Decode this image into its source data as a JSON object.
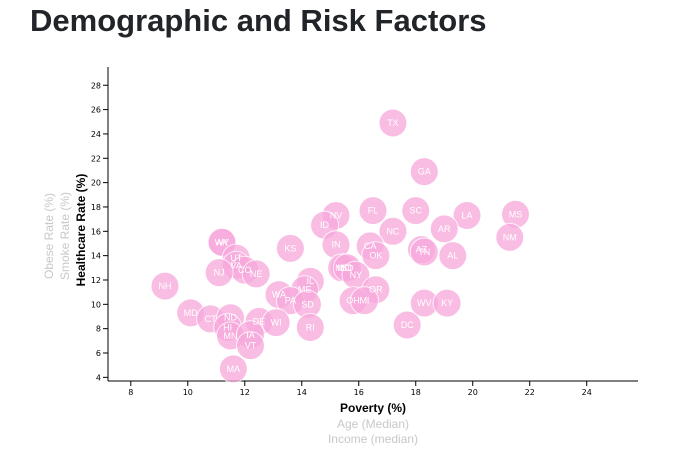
{
  "page": {
    "title": "Demographic and Risk Factors"
  },
  "colors": {
    "circle": "#f7a8dc",
    "state_text": "#ffffff",
    "active_label": "#000000",
    "inactive_label": "#c8c8c8"
  },
  "chart_data": {
    "type": "scatter",
    "xlabel": "Poverty (%)",
    "ylabel": "Healthcare Rate (%)",
    "x_axis_options": [
      {
        "label": "Poverty (%)",
        "active": true
      },
      {
        "label": "Age (Median)",
        "active": false
      },
      {
        "label": "Income (median)",
        "active": false
      }
    ],
    "y_axis_options": [
      {
        "label": "Healthcare Rate (%)",
        "active": true
      },
      {
        "label": "Smoke Rate (%)",
        "active": false
      },
      {
        "label": "Obese Rate (%)",
        "active": false
      }
    ],
    "xlim": [
      7.2,
      25.8
    ],
    "ylim": [
      3.7,
      29.5
    ],
    "x_ticks": [
      8,
      10,
      12,
      14,
      16,
      18,
      20,
      22,
      24
    ],
    "y_ticks": [
      4,
      6,
      8,
      10,
      12,
      14,
      16,
      18,
      20,
      22,
      24,
      26,
      28
    ],
    "grid": false,
    "points": [
      {
        "label": "TX",
        "x": 17.2,
        "y": 24.9
      },
      {
        "label": "GA",
        "x": 18.3,
        "y": 20.9
      },
      {
        "label": "LA",
        "x": 19.8,
        "y": 17.3
      },
      {
        "label": "MS",
        "x": 21.5,
        "y": 17.4
      },
      {
        "label": "SC",
        "x": 18.0,
        "y": 17.7
      },
      {
        "label": "FL",
        "x": 16.5,
        "y": 17.7
      },
      {
        "label": "NV",
        "x": 15.2,
        "y": 17.3
      },
      {
        "label": "ID",
        "x": 14.8,
        "y": 16.5
      },
      {
        "label": "NC",
        "x": 17.2,
        "y": 16.0
      },
      {
        "label": "AR",
        "x": 19.0,
        "y": 16.2
      },
      {
        "label": "NM",
        "x": 21.3,
        "y": 15.5
      },
      {
        "label": "AK",
        "x": 11.2,
        "y": 15.1
      },
      {
        "label": "WY",
        "x": 11.2,
        "y": 15.1
      },
      {
        "label": "KS",
        "x": 13.6,
        "y": 14.6
      },
      {
        "label": "IN",
        "x": 15.2,
        "y": 14.9
      },
      {
        "label": "CA",
        "x": 16.4,
        "y": 14.8
      },
      {
        "label": "AZ",
        "x": 18.2,
        "y": 14.5
      },
      {
        "label": "TN",
        "x": 18.3,
        "y": 14.3
      },
      {
        "label": "AL",
        "x": 19.3,
        "y": 14.0
      },
      {
        "label": "OK",
        "x": 16.6,
        "y": 14.0
      },
      {
        "label": "UT",
        "x": 11.7,
        "y": 13.8
      },
      {
        "label": "VA",
        "x": 11.7,
        "y": 13.2
      },
      {
        "label": "CO",
        "x": 12.0,
        "y": 12.8
      },
      {
        "label": "NJ",
        "x": 11.1,
        "y": 12.6
      },
      {
        "label": "NE",
        "x": 12.4,
        "y": 12.5
      },
      {
        "label": "MO",
        "x": 15.5,
        "y": 13.0
      },
      {
        "label": "MT",
        "x": 15.4,
        "y": 13.0
      },
      {
        "label": "SD",
        "x": 15.6,
        "y": 13.0
      },
      {
        "label": "NY",
        "x": 15.9,
        "y": 12.4
      },
      {
        "label": "IL",
        "x": 14.3,
        "y": 11.9
      },
      {
        "label": "NH",
        "x": 9.2,
        "y": 11.5
      },
      {
        "label": "ME",
        "x": 14.1,
        "y": 11.2
      },
      {
        "label": "OR",
        "x": 16.6,
        "y": 11.2
      },
      {
        "label": "WA",
        "x": 13.2,
        "y": 10.8
      },
      {
        "label": "PA",
        "x": 13.6,
        "y": 10.3
      },
      {
        "label": "OH",
        "x": 15.8,
        "y": 10.3
      },
      {
        "label": "MI",
        "x": 16.2,
        "y": 10.3
      },
      {
        "label": "SD",
        "x": 14.2,
        "y": 10.0
      },
      {
        "label": "WV",
        "x": 18.3,
        "y": 10.1
      },
      {
        "label": "KY",
        "x": 19.1,
        "y": 10.1
      },
      {
        "label": "MD",
        "x": 10.1,
        "y": 9.3
      },
      {
        "label": "CT",
        "x": 10.8,
        "y": 8.8
      },
      {
        "label": "ND",
        "x": 11.5,
        "y": 8.9
      },
      {
        "label": "DE",
        "x": 12.5,
        "y": 8.6
      },
      {
        "label": "WI",
        "x": 13.1,
        "y": 8.5
      },
      {
        "label": "RI",
        "x": 14.3,
        "y": 8.1
      },
      {
        "label": "DC",
        "x": 17.7,
        "y": 8.3
      },
      {
        "label": "HI",
        "x": 11.4,
        "y": 8.1
      },
      {
        "label": "MN",
        "x": 11.5,
        "y": 7.4
      },
      {
        "label": "IA",
        "x": 12.2,
        "y": 7.5
      },
      {
        "label": "VT",
        "x": 12.2,
        "y": 6.6
      },
      {
        "label": "MA",
        "x": 11.6,
        "y": 4.7
      }
    ]
  }
}
